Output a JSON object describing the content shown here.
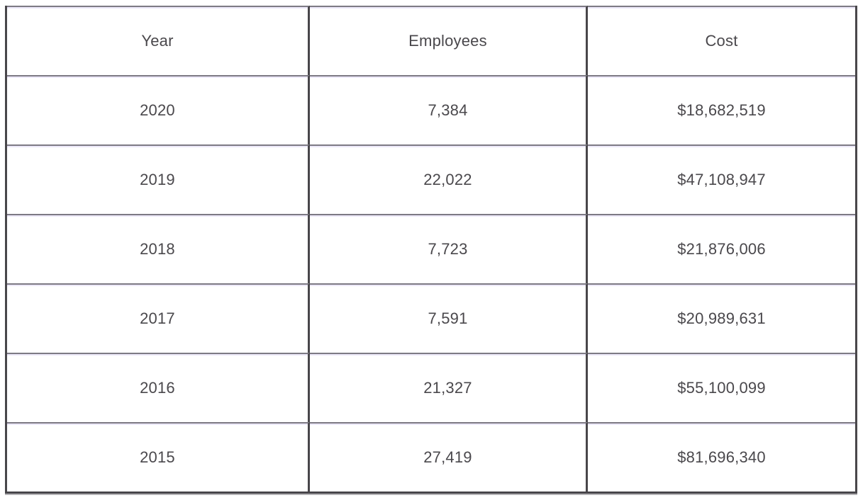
{
  "table": {
    "columns": [
      {
        "label": "Year"
      },
      {
        "label": "Employees"
      },
      {
        "label": "Cost"
      }
    ],
    "rows": [
      {
        "year": "2020",
        "employees": "7,384",
        "cost": "$18,682,519"
      },
      {
        "year": "2019",
        "employees": "22,022",
        "cost": "$47,108,947"
      },
      {
        "year": "2018",
        "employees": "7,723",
        "cost": "$21,876,006"
      },
      {
        "year": "2017",
        "employees": "7,591",
        "cost": "$20,989,631"
      },
      {
        "year": "2016",
        "employees": "21,327",
        "cost": "$55,100,099"
      },
      {
        "year": "2015",
        "employees": "27,419",
        "cost": "$81,696,340"
      }
    ]
  },
  "colors": {
    "border_dark": "#48464a",
    "border_gray": "#7d7a84",
    "border_lavender": "#ece8f8",
    "text": "#4a484c",
    "background": "#ffffff"
  }
}
